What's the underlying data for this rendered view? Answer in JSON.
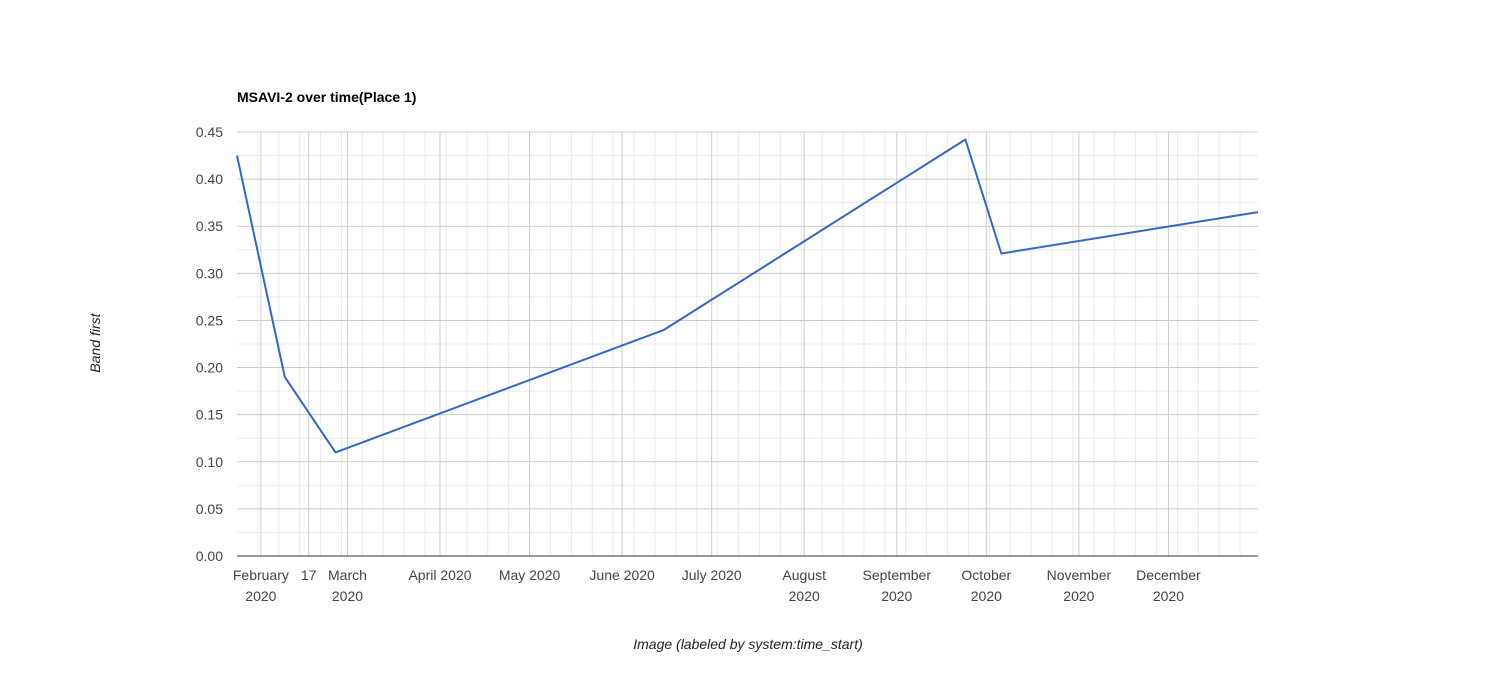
{
  "chart_data": {
    "type": "line",
    "title": "MSAVI-2 over time(Place 1)",
    "xlabel": "Image (labeled by system:time_start)",
    "ylabel": "Band first",
    "x_axis_type": "date",
    "xlim": [
      "2020-01-24",
      "2020-12-31"
    ],
    "ylim": [
      0,
      0.45
    ],
    "y_ticks": [
      0,
      0.05,
      0.1,
      0.15,
      0.2,
      0.25,
      0.3,
      0.35,
      0.4,
      0.45
    ],
    "y_tick_labels": [
      "0.00",
      "0.05",
      "0.10",
      "0.15",
      "0.20",
      "0.25",
      "0.30",
      "0.35",
      "0.40",
      "0.45"
    ],
    "x_ticks": [
      {
        "date": "2020-02-01",
        "lines": [
          "February",
          "2020"
        ]
      },
      {
        "date": "2020-02-17",
        "lines": [
          "17"
        ]
      },
      {
        "date": "2020-03-01",
        "lines": [
          "March",
          "2020"
        ]
      },
      {
        "date": "2020-04-01",
        "lines": [
          "April 2020"
        ]
      },
      {
        "date": "2020-05-01",
        "lines": [
          "May 2020"
        ]
      },
      {
        "date": "2020-06-01",
        "lines": [
          "June 2020"
        ]
      },
      {
        "date": "2020-07-01",
        "lines": [
          "July 2020"
        ]
      },
      {
        "date": "2020-08-01",
        "lines": [
          "August",
          "2020"
        ]
      },
      {
        "date": "2020-09-01",
        "lines": [
          "September",
          "2020"
        ]
      },
      {
        "date": "2020-10-01",
        "lines": [
          "October",
          "2020"
        ]
      },
      {
        "date": "2020-11-01",
        "lines": [
          "November",
          "2020"
        ]
      },
      {
        "date": "2020-12-01",
        "lines": [
          "December",
          "2020"
        ]
      }
    ],
    "grid": true,
    "legend": "none",
    "series": [
      {
        "color": "#3366cc",
        "points": [
          {
            "x": "2020-01-24",
            "y": 0.425
          },
          {
            "x": "2020-02-09",
            "y": 0.19
          },
          {
            "x": "2020-02-26",
            "y": 0.11
          },
          {
            "x": "2020-06-15",
            "y": 0.24
          },
          {
            "x": "2020-09-24",
            "y": 0.442
          },
          {
            "x": "2020-10-06",
            "y": 0.321
          },
          {
            "x": "2020-12-31",
            "y": 0.365
          }
        ]
      }
    ]
  }
}
